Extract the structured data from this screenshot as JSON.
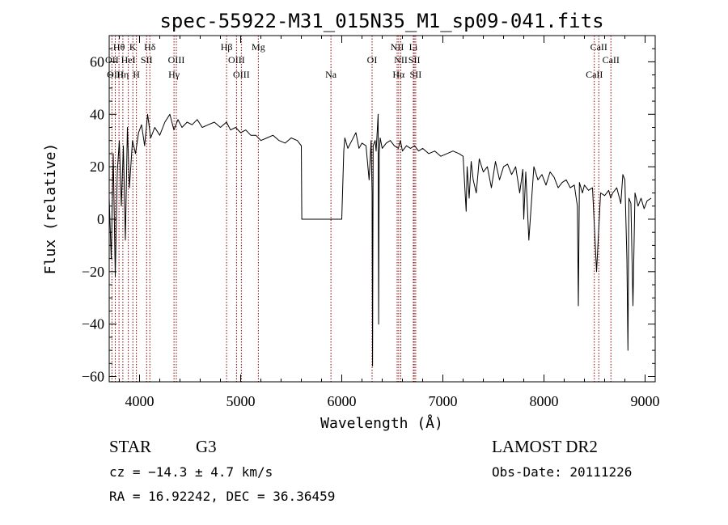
{
  "chart_data": {
    "type": "line",
    "title": "spec-55922-M31_015N35_M1_sp09-041.fits",
    "xlabel": "Wavelength (Å)",
    "ylabel": "Flux (relative)",
    "xlim": [
      3700,
      9100
    ],
    "ylim": [
      -62,
      70
    ],
    "xticks": [
      4000,
      5000,
      6000,
      7000,
      8000,
      9000
    ],
    "yticks": [
      -60,
      -40,
      -20,
      0,
      20,
      40,
      60
    ],
    "grid": false,
    "line_color": "#000000",
    "marker_color": "#8b0000",
    "series": [
      {
        "x": [
          3700,
          3720,
          3740,
          3760,
          3780,
          3800,
          3820,
          3840,
          3860,
          3880,
          3900,
          3930,
          3960,
          3990,
          4020,
          4050,
          4080,
          4110,
          4150,
          4200,
          4250,
          4300,
          4340,
          4380,
          4420,
          4470,
          4520,
          4570,
          4620,
          4680,
          4740,
          4800,
          4860,
          4900,
          4950,
          5000,
          5050,
          5100,
          5150,
          5200,
          5260,
          5320,
          5380,
          5440,
          5500,
          5560,
          5600,
          5605,
          5800,
          6000,
          6020,
          6030,
          6060,
          6100,
          6140,
          6170,
          6200,
          6240,
          6270,
          6290,
          6300,
          6305,
          6310,
          6330,
          6340,
          6360,
          6365,
          6370,
          6380,
          6400,
          6440,
          6480,
          6520,
          6560,
          6580,
          6600,
          6640,
          6680,
          6720,
          6760,
          6800,
          6860,
          6920,
          6980,
          7040,
          7100,
          7160,
          7200,
          7230,
          7240,
          7260,
          7280,
          7300,
          7330,
          7360,
          7400,
          7440,
          7480,
          7520,
          7560,
          7600,
          7640,
          7680,
          7720,
          7760,
          7790,
          7800,
          7820,
          7850,
          7900,
          7940,
          7980,
          8020,
          8060,
          8100,
          8140,
          8180,
          8220,
          8260,
          8300,
          8330,
          8340,
          8350,
          8380,
          8400,
          8440,
          8480,
          8520,
          8560,
          8600,
          8640,
          8660,
          8680,
          8720,
          8760,
          8780,
          8800,
          8820,
          8830,
          8840,
          8860,
          8880,
          8900,
          8930,
          8960,
          8990,
          9020,
          9060
        ],
        "y": [
          8,
          -15,
          25,
          -22,
          18,
          30,
          5,
          28,
          -8,
          35,
          12,
          30,
          25,
          33,
          36,
          28,
          40,
          31,
          35,
          32,
          37,
          40,
          34,
          38,
          35,
          37,
          36,
          38,
          35,
          36,
          37,
          35,
          37,
          34,
          35,
          33,
          34,
          32,
          32,
          30,
          31,
          32,
          30,
          29,
          31,
          30,
          28,
          0,
          0,
          0,
          26,
          31,
          27,
          30,
          33,
          27,
          29,
          28,
          15,
          30,
          10,
          -56,
          28,
          30,
          26,
          40,
          -40,
          25,
          31,
          27,
          29,
          30,
          28,
          27,
          30,
          26,
          28,
          27,
          28,
          26,
          27,
          25,
          26,
          24,
          25,
          26,
          25,
          24,
          3,
          20,
          8,
          22,
          15,
          10,
          23,
          18,
          20,
          12,
          22,
          15,
          20,
          21,
          17,
          20,
          10,
          19,
          0,
          18,
          -8,
          20,
          15,
          17,
          13,
          18,
          16,
          12,
          14,
          15,
          12,
          13,
          5,
          -33,
          14,
          10,
          13,
          11,
          12,
          -20,
          10,
          9,
          11,
          8,
          10,
          12,
          6,
          17,
          15,
          -15,
          -50,
          8,
          6,
          -33,
          10,
          5,
          8,
          4,
          7,
          8
        ]
      }
    ],
    "lines": [
      {
        "label": "Hθ",
        "x": 3797,
        "row": 1
      },
      {
        "label": "K",
        "x": 3934,
        "row": 1
      },
      {
        "label": "Hδ",
        "x": 4102,
        "row": 1
      },
      {
        "label": "Hβ",
        "x": 4861,
        "row": 1
      },
      {
        "label": "Mg",
        "x": 5175,
        "row": 1
      },
      {
        "label": "NII",
        "x": 6548,
        "row": 1
      },
      {
        "label": "Li",
        "x": 6708,
        "row": 1
      },
      {
        "label": "CaII",
        "x": 8542,
        "row": 1
      },
      {
        "label": "OII",
        "x": 3727,
        "row": 2
      },
      {
        "label": "HeI",
        "x": 3889,
        "row": 2
      },
      {
        "label": "SII",
        "x": 4070,
        "row": 2
      },
      {
        "label": "OIII",
        "x": 4364,
        "row": 2
      },
      {
        "label": "OIII",
        "x": 4959,
        "row": 2
      },
      {
        "label": "OI",
        "x": 6300,
        "row": 2
      },
      {
        "label": "NII",
        "x": 6584,
        "row": 2
      },
      {
        "label": "SII",
        "x": 6717,
        "row": 2
      },
      {
        "label": "CaII",
        "x": 8662,
        "row": 2
      },
      {
        "label": "OIII",
        "x": 3760,
        "row": 3
      },
      {
        "label": "Hη",
        "x": 3835,
        "row": 3
      },
      {
        "label": "H",
        "x": 3969,
        "row": 3
      },
      {
        "label": "Hγ",
        "x": 4341,
        "row": 3
      },
      {
        "label": "OIII",
        "x": 5007,
        "row": 3
      },
      {
        "label": "Na",
        "x": 5893,
        "row": 3
      },
      {
        "label": "Hα",
        "x": 6563,
        "row": 3
      },
      {
        "label": "SII",
        "x": 6731,
        "row": 3
      },
      {
        "label": "CaII",
        "x": 8498,
        "row": 3
      }
    ]
  },
  "info": {
    "object_class": "STAR",
    "subclass": "G3",
    "survey": "LAMOST DR2",
    "cz": "cz = −14.3 ± 4.7 km/s",
    "obs_date": "Obs-Date: 20111226",
    "coords": "RA =  16.92242, DEC =  36.36459"
  }
}
